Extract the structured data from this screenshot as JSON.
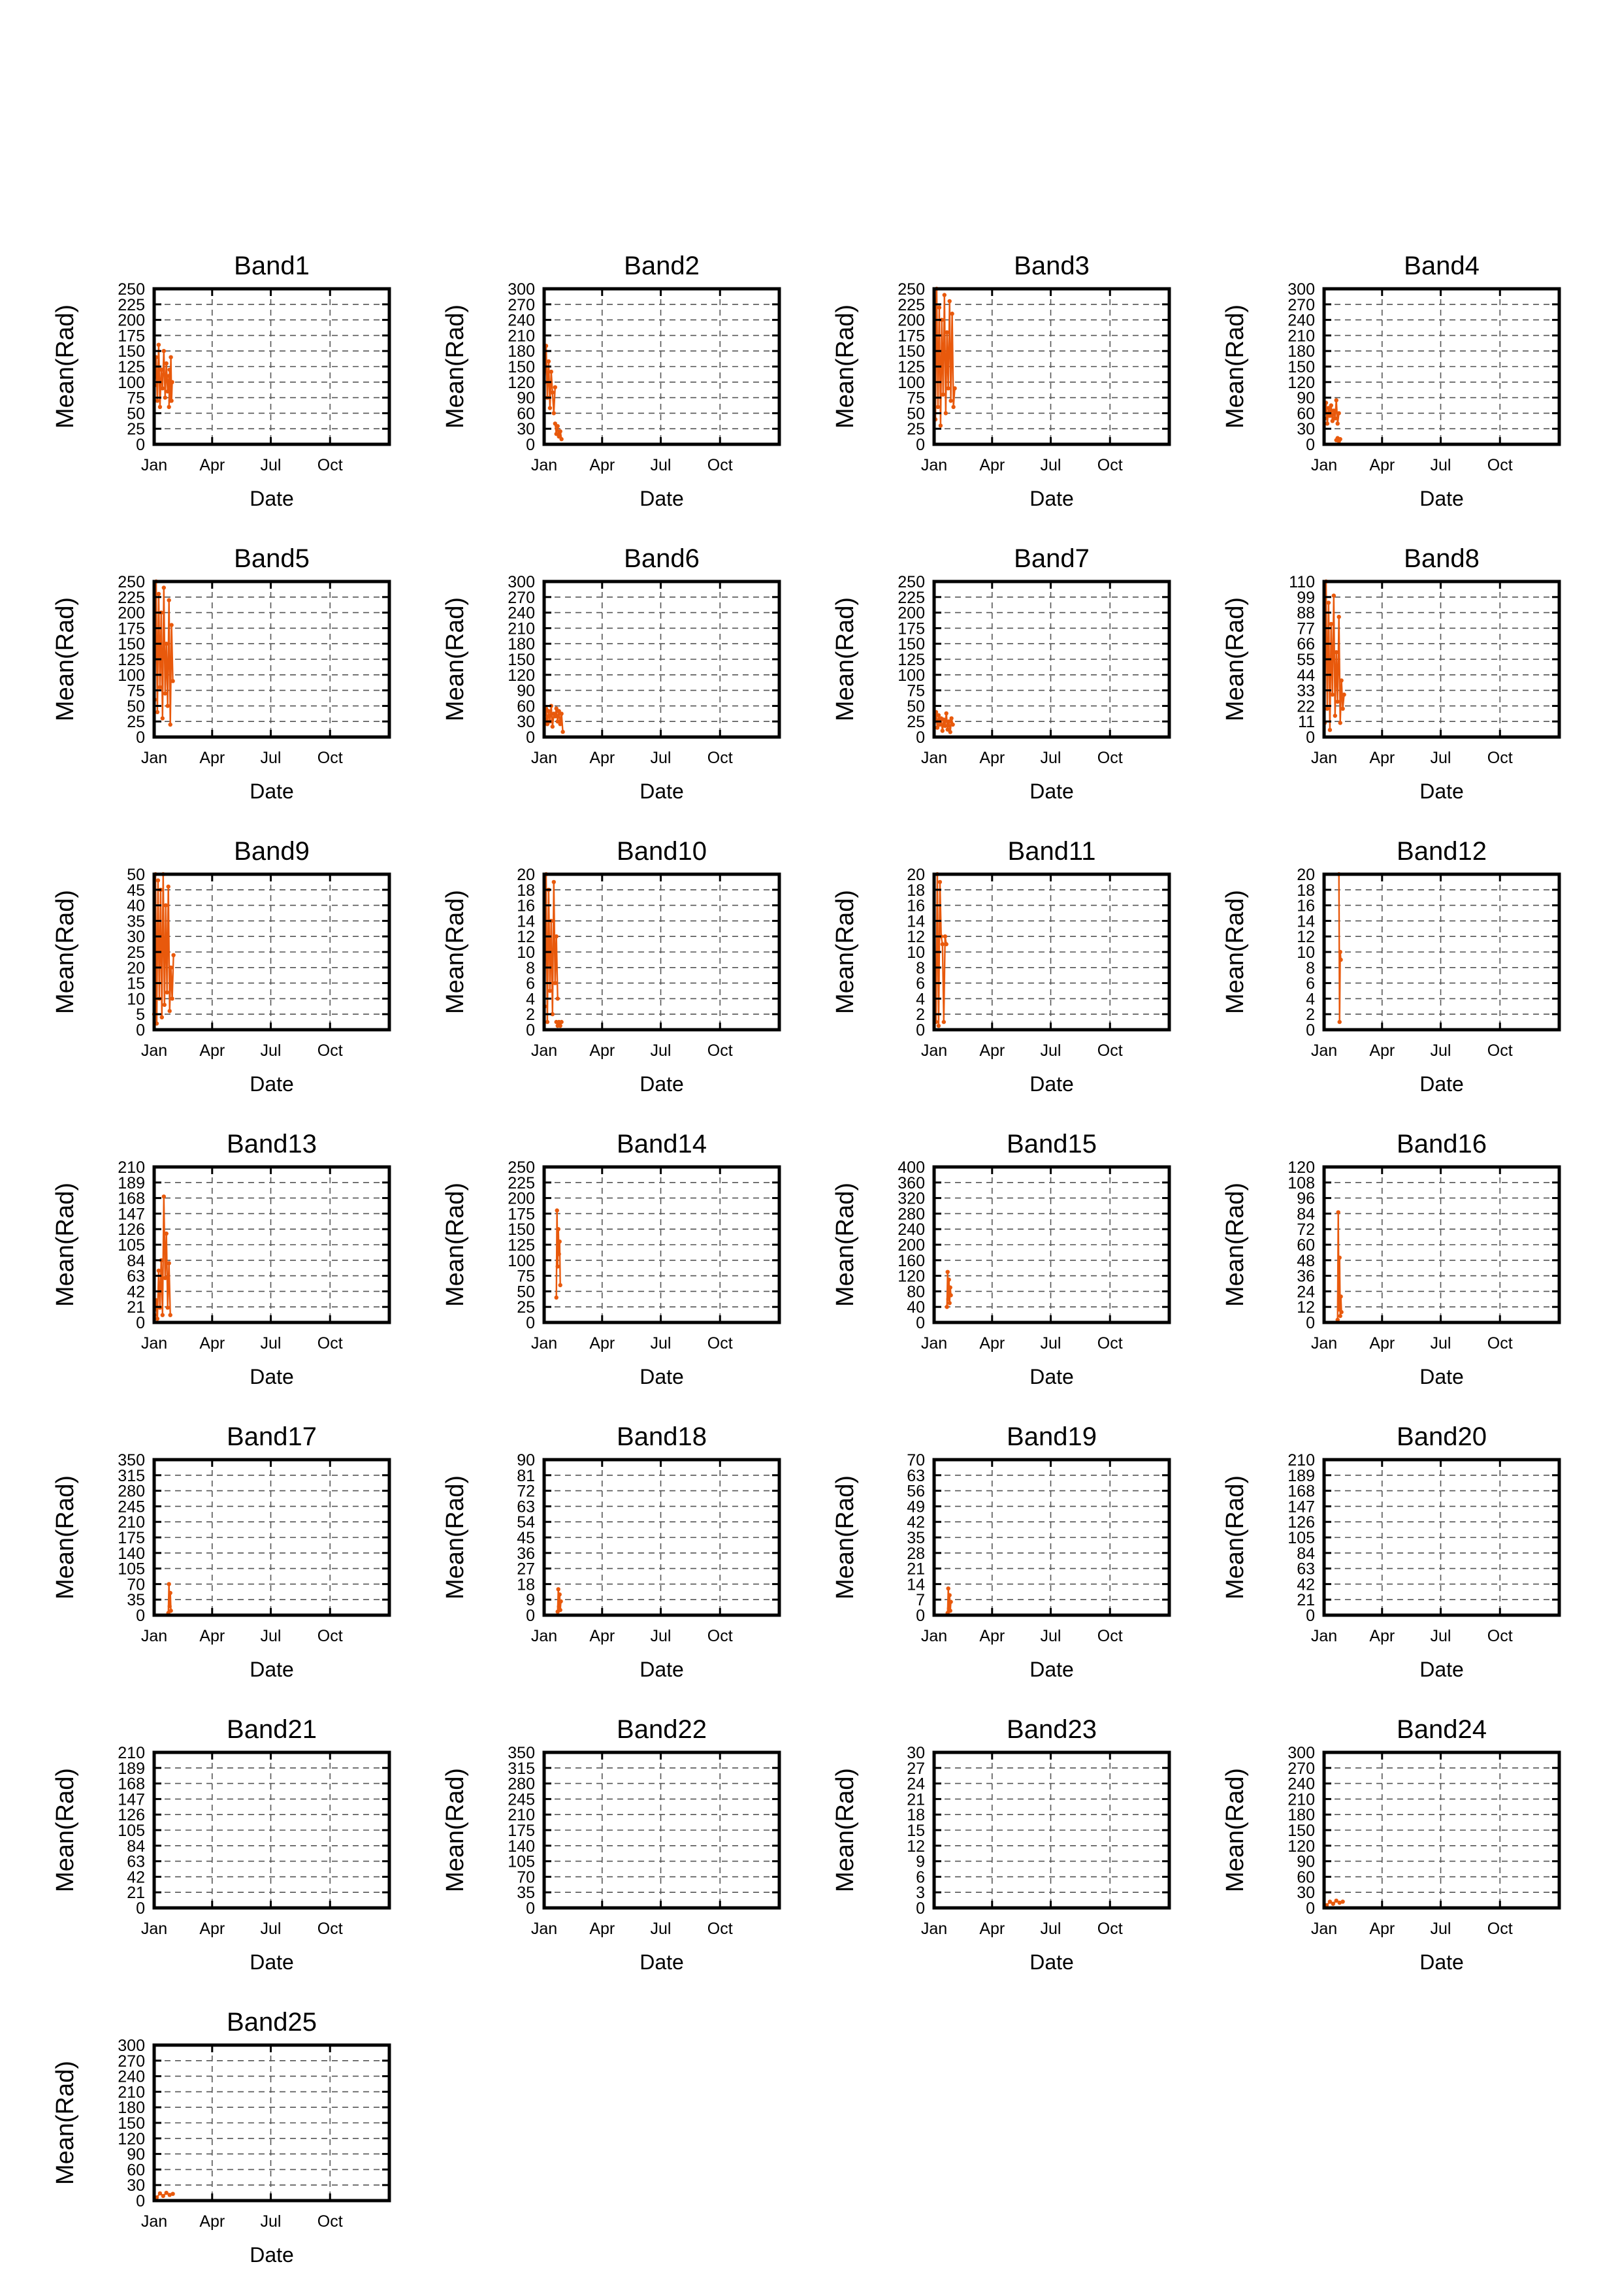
{
  "chart_data": {
    "type": "line",
    "x_ticks": [
      "Jan",
      "Apr",
      "Jul",
      "Oct"
    ],
    "xlabel": "Date",
    "ylabel": "Mean(Rad)",
    "series_color": "#e8590c",
    "panels": [
      {
        "title": "Band1",
        "ymax": 250,
        "ystep": 25,
        "segments": [
          {
            "x": [
              "Jan 02",
              "Jan 04",
              "Jan 06",
              "Jan 08",
              "Jan 10",
              "Jan 12",
              "Jan 14",
              "Jan 16",
              "Jan 18",
              "Jan 20",
              "Jan 22",
              "Jan 24",
              "Jan 26",
              "Jan 28"
            ],
            "y": [
              95,
              140,
              70,
              160,
              60,
              120,
              90,
              150,
              75,
              130,
              85,
              110,
              70,
              100
            ]
          },
          {
            "x": [
              "Jan 24",
              "Jan 25",
              "Jan 26",
              "Jan 27",
              "Jan 28",
              "Jan 29"
            ],
            "y": [
              60,
              120,
              90,
              140,
              70,
              100
            ]
          }
        ]
      },
      {
        "title": "Band2",
        "ymax": 300,
        "ystep": 30,
        "segments": [
          {
            "x": [
              "Jan 02",
              "Jan 04",
              "Jan 06",
              "Jan 08",
              "Jan 10",
              "Jan 12",
              "Jan 14",
              "Jan 16",
              "Jan 18"
            ],
            "y": [
              120,
              190,
              90,
              160,
              70,
              140,
              100,
              60,
              110
            ]
          },
          {
            "x": [
              "Jan 18",
              "Jan 20",
              "Jan 22",
              "Jan 24",
              "Jan 26",
              "Jan 28"
            ],
            "y": [
              40,
              20,
              35,
              15,
              25,
              10
            ]
          }
        ]
      },
      {
        "title": "Band3",
        "ymax": 250,
        "ystep": 25,
        "segments": [
          {
            "x": [
              "Jan 03",
              "Jan 05",
              "Jan 07",
              "Jan 09",
              "Jan 11",
              "Jan 13",
              "Jan 15",
              "Jan 17",
              "Jan 19",
              "Jan 21",
              "Jan 23",
              "Jan 25",
              "Jan 27",
              "Jan 29",
              "Jan 31",
              "Feb 02"
            ],
            "y": [
              40,
              250,
              60,
              220,
              30,
              200,
              80,
              240,
              50,
              180,
              90,
              230,
              70,
              210,
              60,
              90
            ]
          }
        ]
      },
      {
        "title": "Band4",
        "ymax": 300,
        "ystep": 30,
        "segments": [
          {
            "x": [
              "Jan 02",
              "Jan 04",
              "Jan 06",
              "Jan 08",
              "Jan 10",
              "Jan 12",
              "Jan 14",
              "Jan 16",
              "Jan 18",
              "Jan 20",
              "Jan 22",
              "Jan 24"
            ],
            "y": [
              50,
              80,
              40,
              70,
              55,
              75,
              45,
              65,
              50,
              85,
              40,
              60
            ]
          },
          {
            "x": [
              "Jan 20",
              "Jan 22",
              "Jan 24",
              "Jan 26"
            ],
            "y": [
              8,
              12,
              6,
              10
            ]
          }
        ]
      },
      {
        "title": "Band5",
        "ymax": 250,
        "ystep": 25,
        "segments": [
          {
            "x": [
              "Jan 02",
              "Jan 04",
              "Jan 06",
              "Jan 08",
              "Jan 10",
              "Jan 12",
              "Jan 14",
              "Jan 16",
              "Jan 18",
              "Jan 20",
              "Jan 22",
              "Jan 24",
              "Jan 26",
              "Jan 28",
              "Jan 30"
            ],
            "y": [
              60,
              250,
              40,
              230,
              80,
              200,
              30,
              240,
              70,
              150,
              50,
              220,
              20,
              180,
              90
            ]
          }
        ]
      },
      {
        "title": "Band6",
        "ymax": 300,
        "ystep": 30,
        "segments": [
          {
            "x": [
              "Jan 02",
              "Jan 04",
              "Jan 06",
              "Jan 08",
              "Jan 10",
              "Jan 12",
              "Jan 14",
              "Jan 16",
              "Jan 18",
              "Jan 20",
              "Jan 22",
              "Jan 24",
              "Jan 26",
              "Jan 28",
              "Jan 30"
            ],
            "y": [
              35,
              55,
              25,
              50,
              30,
              60,
              20,
              45,
              40,
              55,
              30,
              50,
              25,
              45,
              10
            ]
          }
        ]
      },
      {
        "title": "Band7",
        "ymax": 250,
        "ystep": 25,
        "segments": [
          {
            "x": [
              "Jan 02",
              "Jan 04",
              "Jan 06",
              "Jan 08",
              "Jan 10",
              "Jan 12",
              "Jan 14",
              "Jan 16",
              "Jan 18",
              "Jan 20",
              "Jan 22",
              "Jan 24",
              "Jan 26",
              "Jan 28",
              "Jan 30"
            ],
            "y": [
              25,
              40,
              15,
              35,
              20,
              30,
              10,
              28,
              18,
              38,
              12,
              25,
              8,
              30,
              20
            ]
          }
        ]
      },
      {
        "title": "Band8",
        "ymax": 110,
        "ystep": 11,
        "segments": [
          {
            "x": [
              "Jan 02",
              "Jan 04",
              "Jan 06",
              "Jan 08",
              "Jan 10",
              "Jan 12",
              "Jan 14",
              "Jan 16",
              "Jan 18",
              "Jan 20",
              "Jan 22",
              "Jan 24",
              "Jan 26",
              "Jan 28",
              "Jan 30",
              "Feb 01"
            ],
            "y": [
              10,
              110,
              20,
              95,
              5,
              80,
              30,
              100,
              15,
              60,
              25,
              85,
              10,
              40,
              20,
              30
            ]
          }
        ]
      },
      {
        "title": "Band9",
        "ymax": 50,
        "ystep": 5,
        "segments": [
          {
            "x": [
              "Jan 01",
              "Jan 03",
              "Jan 05",
              "Jan 07",
              "Jan 09",
              "Jan 11",
              "Jan 13",
              "Jan 15",
              "Jan 17",
              "Jan 19",
              "Jan 21",
              "Jan 23",
              "Jan 25",
              "Jan 27",
              "Jan 29",
              "Jan 31"
            ],
            "y": [
              5,
              50,
              2,
              48,
              10,
              45,
              4,
              50,
              8,
              40,
              12,
              46,
              6,
              20,
              10,
              24
            ]
          }
        ]
      },
      {
        "title": "Band10",
        "ymax": 20,
        "ystep": 2,
        "segments": [
          {
            "x": [
              "Jan 02",
              "Jan 04",
              "Jan 06",
              "Jan 08",
              "Jan 10",
              "Jan 12",
              "Jan 14",
              "Jan 16",
              "Jan 18",
              "Jan 20",
              "Jan 22"
            ],
            "y": [
              3,
              20,
              1,
              18,
              5,
              14,
              2,
              19,
              6,
              12,
              4
            ]
          },
          {
            "x": [
              "Jan 20",
              "Jan 22",
              "Jan 24",
              "Jan 26",
              "Jan 28"
            ],
            "y": [
              1,
              0.5,
              1,
              0.5,
              1
            ]
          }
        ]
      },
      {
        "title": "Band11",
        "ymax": 20,
        "ystep": 2,
        "segments": [
          {
            "x": [
              "Jan 04",
              "Jan 06",
              "Jan 08",
              "Jan 10",
              "Jan 12",
              "Jan 14",
              "Jan 16",
              "Jan 18",
              "Jan 20"
            ],
            "y": [
              1,
              20,
              0.5,
              19,
              12,
              11,
              1,
              12,
              11
            ]
          }
        ]
      },
      {
        "title": "Band12",
        "ymax": 20,
        "ystep": 2,
        "segments": [
          {
            "x": [
              "Jan 24",
              "Jan 25",
              "Jan 26",
              "Jan 27"
            ],
            "y": [
              20,
              1,
              10,
              9
            ]
          }
        ]
      },
      {
        "title": "Band13",
        "ymax": 210,
        "ystep": 21,
        "segments": [
          {
            "x": [
              "Jan 02",
              "Jan 04",
              "Jan 06",
              "Jan 08",
              "Jan 10",
              "Jan 12",
              "Jan 14",
              "Jan 16",
              "Jan 18",
              "Jan 20",
              "Jan 22",
              "Jan 24",
              "Jan 26"
            ],
            "y": [
              10,
              30,
              5,
              70,
              20,
              84,
              10,
              170,
              60,
              120,
              20,
              80,
              10
            ]
          }
        ]
      },
      {
        "title": "Band14",
        "ymax": 250,
        "ystep": 25,
        "segments": [
          {
            "x": [
              "Jan 20",
              "Jan 21",
              "Jan 22",
              "Jan 23",
              "Jan 24",
              "Jan 25",
              "Jan 26"
            ],
            "y": [
              40,
              180,
              90,
              150,
              110,
              130,
              60
            ]
          }
        ]
      },
      {
        "title": "Band15",
        "ymax": 400,
        "ystep": 40,
        "segments": [
          {
            "x": [
              "Jan 21",
              "Jan 22",
              "Jan 23",
              "Jan 24",
              "Jan 25",
              "Jan 26",
              "Jan 27"
            ],
            "y": [
              40,
              130,
              60,
              110,
              50,
              90,
              70
            ]
          }
        ]
      },
      {
        "title": "Band16",
        "ymax": 120,
        "ystep": 12,
        "segments": [
          {
            "x": [
              "Jan 22",
              "Jan 23",
              "Jan 24",
              "Jan 25",
              "Jan 26",
              "Jan 27",
              "Jan 28"
            ],
            "y": [
              2,
              85,
              10,
              50,
              5,
              20,
              8
            ]
          }
        ]
      },
      {
        "title": "Band17",
        "ymax": 350,
        "ystep": 35,
        "segments": [
          {
            "x": [
              "Jan 23",
              "Jan 24",
              "Jan 25",
              "Jan 26",
              "Jan 27"
            ],
            "y": [
              5,
              70,
              20,
              50,
              10
            ]
          }
        ]
      },
      {
        "title": "Band18",
        "ymax": 90,
        "ystep": 9,
        "segments": [
          {
            "x": [
              "Jan 22",
              "Jan 23",
              "Jan 24",
              "Jan 25",
              "Jan 26",
              "Jan 27"
            ],
            "y": [
              2,
              15,
              5,
              12,
              3,
              8
            ]
          }
        ]
      },
      {
        "title": "Band19",
        "ymax": 70,
        "ystep": 7,
        "segments": [
          {
            "x": [
              "Jan 22",
              "Jan 23",
              "Jan 24",
              "Jan 25",
              "Jan 26",
              "Jan 27"
            ],
            "y": [
              1,
              12,
              3,
              9,
              2,
              6
            ]
          }
        ]
      },
      {
        "title": "Band20",
        "ymax": 210,
        "ystep": 21,
        "segments": []
      },
      {
        "title": "Band21",
        "ymax": 210,
        "ystep": 21,
        "segments": []
      },
      {
        "title": "Band22",
        "ymax": 350,
        "ystep": 35,
        "segments": []
      },
      {
        "title": "Band23",
        "ymax": 30,
        "ystep": 3,
        "segments": []
      },
      {
        "title": "Band24",
        "ymax": 300,
        "ystep": 30,
        "segments": [
          {
            "x": [
              "Jan 05",
              "Jan 10",
              "Jan 15",
              "Jan 20",
              "Jan 25",
              "Jan 30"
            ],
            "y": [
              5,
              12,
              8,
              14,
              10,
              12
            ]
          }
        ]
      },
      {
        "title": "Band25",
        "ymax": 300,
        "ystep": 30,
        "segments": [
          {
            "x": [
              "Jan 05",
              "Jan 10",
              "Jan 15",
              "Jan 20",
              "Jan 25",
              "Jan 30"
            ],
            "y": [
              6,
              14,
              9,
              15,
              11,
              13
            ]
          }
        ]
      }
    ]
  }
}
